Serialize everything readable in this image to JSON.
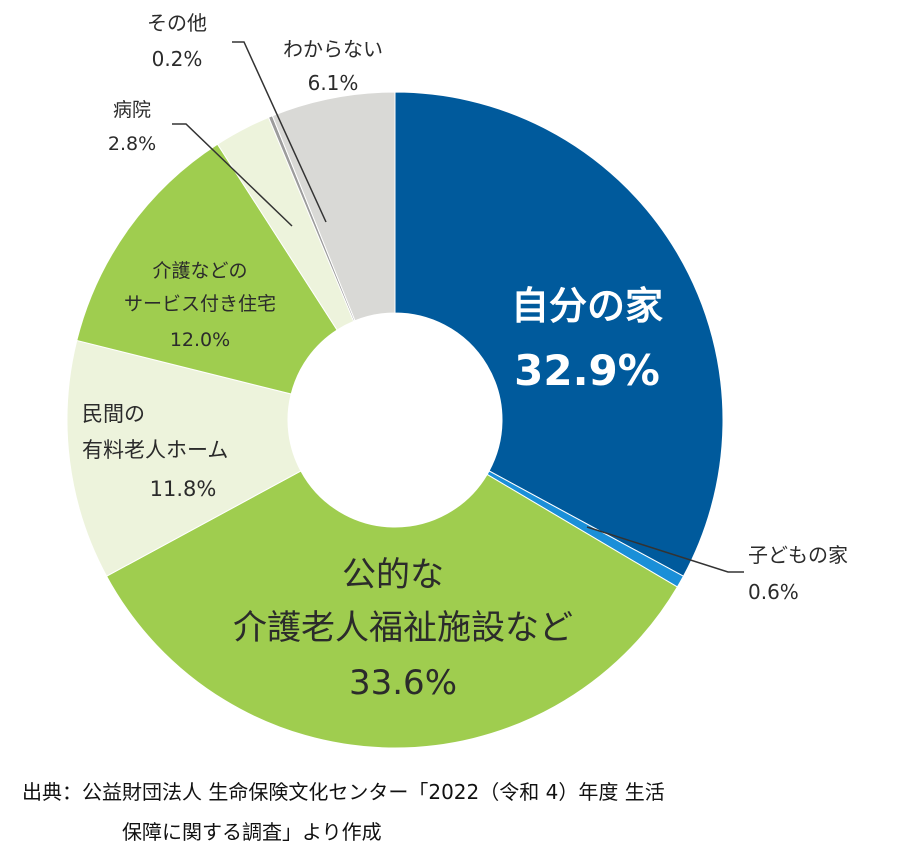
{
  "chart_data": {
    "type": "pie",
    "slices": [
      {
        "name": "自分の家",
        "value": 32.9,
        "label": "32.9%",
        "color": "#005a9c"
      },
      {
        "name": "子どもの家",
        "value": 0.6,
        "label": "0.6%",
        "color": "#1a8fd8"
      },
      {
        "name": "公的な介護老人福祉施設など",
        "value": 33.6,
        "label": "33.6%",
        "color": "#9fcd4f"
      },
      {
        "name": "民間の有料老人ホーム",
        "value": 11.8,
        "label": "11.8%",
        "color": "#edf3dc"
      },
      {
        "name": "介護などのサービス付き住宅",
        "value": 12.0,
        "label": "12.0%",
        "color": "#9fcd4f"
      },
      {
        "name": "病院",
        "value": 2.8,
        "label": "2.8%",
        "color": "#edf3dc"
      },
      {
        "name": "その他",
        "value": 0.2,
        "label": "0.2%",
        "color": "#9c9c9c"
      },
      {
        "name": "わからない",
        "value": 6.1,
        "label": "6.1%",
        "color": "#d9d9d6"
      }
    ]
  },
  "labels": {
    "jibun": {
      "line1": "自分の家",
      "line2": "32.9%"
    },
    "kodomo": {
      "line1": "子どもの家",
      "line2": "0.6%"
    },
    "kouteki": {
      "line1": "公的な",
      "line2": "介護老人福祉施設など",
      "line3": "33.6%"
    },
    "minkan": {
      "line1": "民間の",
      "line2": "有料老人ホーム",
      "line3": "11.8%"
    },
    "service": {
      "line1": "介護などの",
      "line2": "サービス付き住宅",
      "line3": "12.0%"
    },
    "byouin": {
      "line1": "病院",
      "line2": "2.8%"
    },
    "sonota": {
      "line1": "その他",
      "line2": "0.2%"
    },
    "wakaranai": {
      "line1": "わからない",
      "line2": "6.1%"
    }
  },
  "source": {
    "line1": "出典：公益財団法人 生命保険文化センター「2022（令和 4）年度 生活",
    "line2": "保障に関する調査」より作成"
  }
}
